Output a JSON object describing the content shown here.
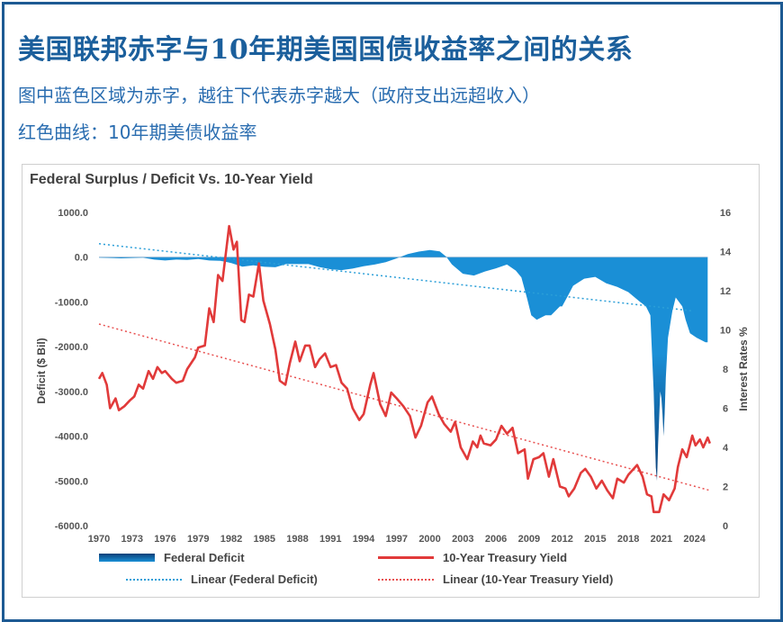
{
  "header": {
    "title": "美国联邦赤字与10年期美国国债收益率之间的关系",
    "subtitle1": "图中蓝色区域为赤字，越往下代表赤字越大（政府支出远超收入）",
    "subtitle2": "红色曲线：10年期美债收益率"
  },
  "colors": {
    "frame": "#1d5a93",
    "title": "#1b5f9c",
    "deficit": "#1a8fd6",
    "deficit_dark": "#0b3f78",
    "yield": "#e13a3a",
    "trend_blue": "#2a9ed8",
    "trend_red": "#e85050"
  },
  "chart_data": {
    "type": "area+line",
    "title": "Federal Surplus / Deficit Vs. 10-Year Yield",
    "ylabel": "Deficit ($ Bil)",
    "y2label": "Interest Rates %",
    "ylim": [
      -6000,
      1000
    ],
    "y2lim": [
      0,
      16
    ],
    "yticks": [
      "1000.0",
      "0.0",
      "-1000.0",
      "-2000.0",
      "-3000.0",
      "-4000.0",
      "-5000.0",
      "-6000.0"
    ],
    "y2ticks": [
      "16",
      "14",
      "12",
      "10",
      "8",
      "6",
      "4",
      "2",
      "0"
    ],
    "xlim": [
      1970,
      2025.5
    ],
    "xticks": [
      "1970",
      "1973",
      "1976",
      "1979",
      "1982",
      "1985",
      "1988",
      "1991",
      "1994",
      "1997",
      "2000",
      "2003",
      "2006",
      "2009",
      "2012",
      "2015",
      "2018",
      "2021",
      "2024"
    ],
    "legend_position": "bottom",
    "legend": [
      "Federal Deficit",
      "10-Year Treasury Yield",
      "Linear (Federal Deficit)",
      "Linear (10-Year Treasury Yield)"
    ],
    "series": [
      {
        "name": "Federal Deficit",
        "kind": "area",
        "points": [
          [
            1970,
            -10
          ],
          [
            1972,
            -25
          ],
          [
            1974,
            -10
          ],
          [
            1975,
            -55
          ],
          [
            1976,
            -75
          ],
          [
            1977,
            -55
          ],
          [
            1978,
            -60
          ],
          [
            1979,
            -40
          ],
          [
            1980,
            -75
          ],
          [
            1981,
            -80
          ],
          [
            1982,
            -130
          ],
          [
            1983,
            -210
          ],
          [
            1984,
            -180
          ],
          [
            1985,
            -215
          ],
          [
            1986,
            -225
          ],
          [
            1987,
            -150
          ],
          [
            1988,
            -155
          ],
          [
            1989,
            -155
          ],
          [
            1990,
            -220
          ],
          [
            1991,
            -270
          ],
          [
            1992,
            -290
          ],
          [
            1993,
            -255
          ],
          [
            1994,
            -200
          ],
          [
            1995,
            -165
          ],
          [
            1996,
            -110
          ],
          [
            1997,
            -25
          ],
          [
            1998,
            70
          ],
          [
            1999,
            125
          ],
          [
            2000,
            160
          ],
          [
            2000.9,
            130
          ],
          [
            2001.5,
            10
          ],
          [
            2002,
            -160
          ],
          [
            2003,
            -370
          ],
          [
            2004,
            -410
          ],
          [
            2005,
            -320
          ],
          [
            2006,
            -250
          ],
          [
            2007,
            -165
          ],
          [
            2007.8,
            -300
          ],
          [
            2008.3,
            -450
          ],
          [
            2008.8,
            -900
          ],
          [
            2009.2,
            -1300
          ],
          [
            2009.7,
            -1400
          ],
          [
            2010.5,
            -1300
          ],
          [
            2011,
            -1300
          ],
          [
            2011.8,
            -1100
          ],
          [
            2012,
            -1100
          ],
          [
            2012.7,
            -780
          ],
          [
            2013,
            -640
          ],
          [
            2014,
            -480
          ],
          [
            2015,
            -440
          ],
          [
            2016,
            -585
          ],
          [
            2017,
            -665
          ],
          [
            2018,
            -780
          ],
          [
            2019,
            -985
          ],
          [
            2019.6,
            -1100
          ],
          [
            2020.0,
            -1300
          ],
          [
            2020.3,
            -3000
          ],
          [
            2020.5,
            -4700
          ],
          [
            2020.6,
            -5000
          ],
          [
            2020.7,
            -4200
          ],
          [
            2020.9,
            -3000
          ],
          [
            2021.0,
            -3150
          ],
          [
            2021.1,
            -3500
          ],
          [
            2021.2,
            -4000
          ],
          [
            2021.3,
            -3500
          ],
          [
            2021.4,
            -2700
          ],
          [
            2021.6,
            -1800
          ],
          [
            2022,
            -1200
          ],
          [
            2022.3,
            -900
          ],
          [
            2022.9,
            -1100
          ],
          [
            2023.2,
            -1400
          ],
          [
            2023.6,
            -1700
          ],
          [
            2024.2,
            -1800
          ],
          [
            2025.0,
            -1900
          ],
          [
            2025.2,
            -1900
          ]
        ]
      },
      {
        "name": "10-Year Treasury Yield",
        "kind": "line",
        "points": [
          [
            1970,
            7.5
          ],
          [
            1970.3,
            7.8
          ],
          [
            1970.7,
            7.2
          ],
          [
            1971,
            6.0
          ],
          [
            1971.5,
            6.5
          ],
          [
            1971.8,
            5.9
          ],
          [
            1972.3,
            6.1
          ],
          [
            1972.8,
            6.4
          ],
          [
            1973.2,
            6.6
          ],
          [
            1973.6,
            7.2
          ],
          [
            1974,
            7.0
          ],
          [
            1974.5,
            7.9
          ],
          [
            1974.9,
            7.5
          ],
          [
            1975.3,
            8.1
          ],
          [
            1975.7,
            7.8
          ],
          [
            1976,
            7.9
          ],
          [
            1976.6,
            7.5
          ],
          [
            1977,
            7.3
          ],
          [
            1977.6,
            7.4
          ],
          [
            1978,
            8.0
          ],
          [
            1978.7,
            8.6
          ],
          [
            1979,
            9.1
          ],
          [
            1979.6,
            9.2
          ],
          [
            1980,
            11.1
          ],
          [
            1980.4,
            10.4
          ],
          [
            1980.8,
            12.8
          ],
          [
            1981.2,
            12.5
          ],
          [
            1981.8,
            15.3
          ],
          [
            1982.2,
            14.1
          ],
          [
            1982.5,
            14.5
          ],
          [
            1982.9,
            10.5
          ],
          [
            1983.2,
            10.4
          ],
          [
            1983.6,
            11.8
          ],
          [
            1984,
            11.7
          ],
          [
            1984.5,
            13.4
          ],
          [
            1984.9,
            11.5
          ],
          [
            1985.5,
            10.3
          ],
          [
            1986,
            9.0
          ],
          [
            1986.4,
            7.4
          ],
          [
            1986.9,
            7.2
          ],
          [
            1987.3,
            8.3
          ],
          [
            1987.8,
            9.4
          ],
          [
            1988.2,
            8.4
          ],
          [
            1988.7,
            9.2
          ],
          [
            1989.1,
            9.2
          ],
          [
            1989.6,
            8.1
          ],
          [
            1990,
            8.5
          ],
          [
            1990.5,
            8.8
          ],
          [
            1991,
            8.1
          ],
          [
            1991.5,
            8.2
          ],
          [
            1992,
            7.3
          ],
          [
            1992.5,
            7.0
          ],
          [
            1993,
            6.0
          ],
          [
            1993.6,
            5.4
          ],
          [
            1994,
            5.7
          ],
          [
            1994.6,
            7.2
          ],
          [
            1994.9,
            7.8
          ],
          [
            1995.5,
            6.2
          ],
          [
            1996,
            5.6
          ],
          [
            1996.5,
            6.8
          ],
          [
            1997,
            6.5
          ],
          [
            1997.6,
            6.1
          ],
          [
            1998.2,
            5.6
          ],
          [
            1998.7,
            4.5
          ],
          [
            1999.2,
            5.1
          ],
          [
            1999.8,
            6.3
          ],
          [
            2000.2,
            6.6
          ],
          [
            2000.8,
            5.7
          ],
          [
            2001.3,
            5.2
          ],
          [
            2001.9,
            4.8
          ],
          [
            2002.3,
            5.3
          ],
          [
            2002.8,
            4.0
          ],
          [
            2003.4,
            3.4
          ],
          [
            2003.9,
            4.3
          ],
          [
            2004.3,
            4.0
          ],
          [
            2004.6,
            4.6
          ],
          [
            2004.9,
            4.2
          ],
          [
            2005.5,
            4.1
          ],
          [
            2006,
            4.4
          ],
          [
            2006.5,
            5.1
          ],
          [
            2007,
            4.7
          ],
          [
            2007.5,
            5.0
          ],
          [
            2008,
            3.7
          ],
          [
            2008.6,
            3.9
          ],
          [
            2008.9,
            2.4
          ],
          [
            2009.4,
            3.4
          ],
          [
            2009.9,
            3.5
          ],
          [
            2010.3,
            3.7
          ],
          [
            2010.8,
            2.5
          ],
          [
            2011.2,
            3.4
          ],
          [
            2011.8,
            2.0
          ],
          [
            2012.3,
            1.9
          ],
          [
            2012.6,
            1.5
          ],
          [
            2013.1,
            1.9
          ],
          [
            2013.7,
            2.7
          ],
          [
            2014.1,
            2.9
          ],
          [
            2014.6,
            2.5
          ],
          [
            2015.1,
            1.9
          ],
          [
            2015.6,
            2.3
          ],
          [
            2016.1,
            1.8
          ],
          [
            2016.6,
            1.4
          ],
          [
            2017,
            2.4
          ],
          [
            2017.6,
            2.2
          ],
          [
            2018,
            2.6
          ],
          [
            2018.8,
            3.1
          ],
          [
            2019.3,
            2.5
          ],
          [
            2019.7,
            1.6
          ],
          [
            2020.1,
            1.5
          ],
          [
            2020.3,
            0.7
          ],
          [
            2020.8,
            0.7
          ],
          [
            2021.2,
            1.6
          ],
          [
            2021.7,
            1.3
          ],
          [
            2022.2,
            1.9
          ],
          [
            2022.5,
            3.0
          ],
          [
            2022.9,
            3.9
          ],
          [
            2023.3,
            3.5
          ],
          [
            2023.8,
            4.6
          ],
          [
            2024.1,
            4.1
          ],
          [
            2024.5,
            4.4
          ],
          [
            2024.8,
            4.0
          ],
          [
            2025.2,
            4.5
          ],
          [
            2025.4,
            4.2
          ]
        ]
      },
      {
        "name": "Linear (Federal Deficit)",
        "kind": "trend",
        "points": [
          [
            1970,
            300
          ],
          [
            2023.8,
            -1200
          ]
        ]
      },
      {
        "name": "Linear (10-Year Treasury Yield)",
        "kind": "trend",
        "points": [
          [
            1970,
            10.3
          ],
          [
            2025.4,
            1.8
          ]
        ]
      }
    ]
  }
}
